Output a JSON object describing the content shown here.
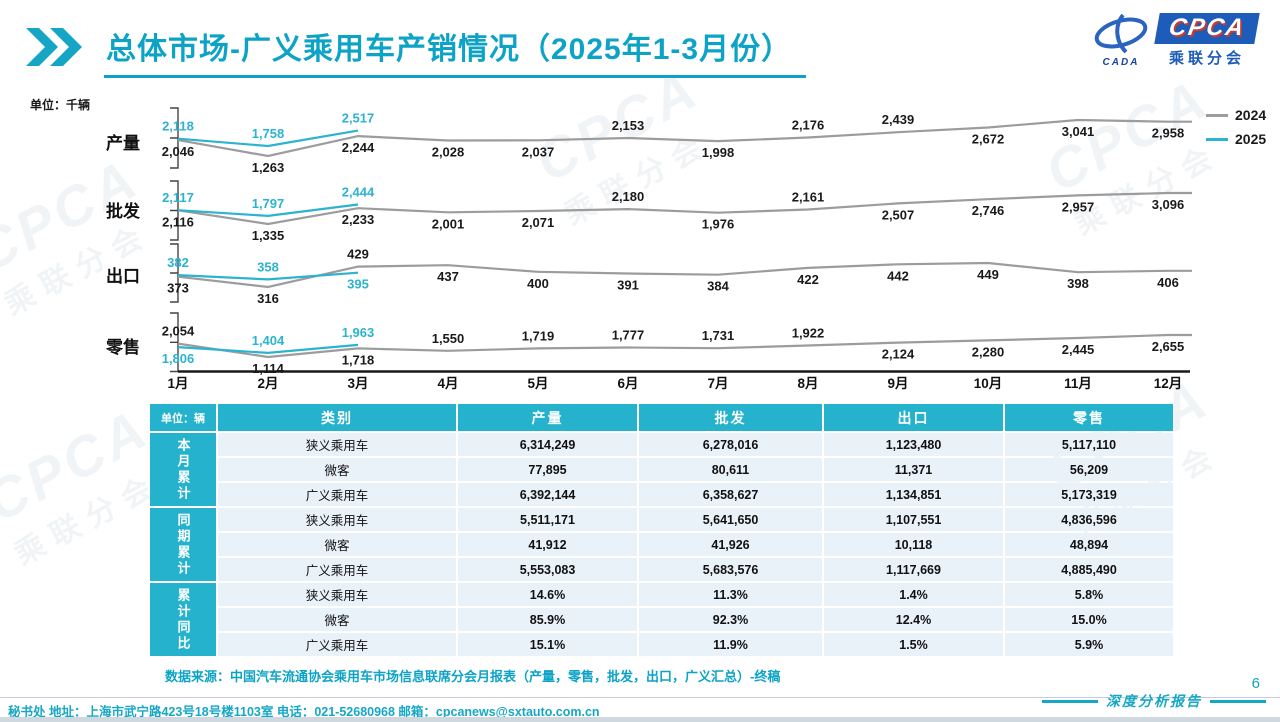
{
  "page": {
    "title": "总体市场-广义乘用车产销情况（2025年1-3月份）",
    "unit_label": "单位：千辆",
    "source": "数据来源：中国汽车流通协会乘用车市场信息联席分会月报表（产量，零售，批发，出口，广义汇总）-终稿",
    "footer_contact": "秘书处  地址：上海市武宁路423号18号楼1103室  电话：021-52680968  邮箱：cpcanews@sxtauto.com.cn",
    "report_label": "深度分析报告",
    "page_number": "6"
  },
  "logo": {
    "cpca": "CPCA",
    "cada": "CADA",
    "cn": "乘联分会"
  },
  "colors": {
    "accent_teal": "#0da3c6",
    "line_2024": "#9c9c9c",
    "line_2025": "#2bb3cf",
    "label_2024": "#1a1a1a",
    "table_header": "#24b2cc",
    "row_bg": "#e9f1f9",
    "logo_blue": "#1d5cb8",
    "logo_red": "#c53b2e"
  },
  "legend": {
    "items": [
      {
        "label": "2024",
        "color": "#9c9c9c"
      },
      {
        "label": "2025",
        "color": "#2bb3cf"
      }
    ]
  },
  "chart_data": {
    "type": "line",
    "unit": "千辆",
    "x": [
      "1月",
      "2月",
      "3月",
      "4月",
      "5月",
      "6月",
      "7月",
      "8月",
      "9月",
      "10月",
      "11月",
      "12月"
    ],
    "legend_position": "top-right",
    "rows": [
      {
        "label": "产量",
        "series": [
          {
            "name": "2024",
            "color": "#9c9c9c",
            "label_color": "#1a1a1a",
            "values": [
              2046,
              1263,
              2244,
              2028,
              2037,
              2153,
              1998,
              2176,
              2439,
              2672,
              3041,
              2958
            ],
            "label_pos": [
              "b",
              "b",
              "b",
              "b",
              "b",
              "a",
              "b",
              "a",
              "a",
              "b",
              "b",
              "b"
            ]
          },
          {
            "name": "2025",
            "color": "#2bb3cf",
            "label_color": "#2bb3cf",
            "values": [
              2118,
              1758,
              2517
            ],
            "label_pos": [
              "a",
              "a",
              "a"
            ]
          }
        ]
      },
      {
        "label": "批发",
        "series": [
          {
            "name": "2024",
            "color": "#9c9c9c",
            "label_color": "#1a1a1a",
            "values": [
              2116,
              1335,
              2233,
              2001,
              2071,
              2180,
              1976,
              2161,
              2507,
              2746,
              2957,
              3096
            ],
            "label_pos": [
              "b",
              "b",
              "b",
              "b",
              "b",
              "a",
              "b",
              "a",
              "b",
              "b",
              "b",
              "b"
            ]
          },
          {
            "name": "2025",
            "color": "#2bb3cf",
            "label_color": "#2bb3cf",
            "values": [
              2117,
              1797,
              2444
            ],
            "label_pos": [
              "a",
              "a",
              "a"
            ]
          }
        ]
      },
      {
        "label": "出口",
        "series": [
          {
            "name": "2024",
            "color": "#9c9c9c",
            "label_color": "#1a1a1a",
            "values": [
              373,
              316,
              429,
              437,
              400,
              391,
              384,
              422,
              442,
              449,
              398,
              406
            ],
            "label_pos": [
              "b",
              "b",
              "a",
              "b",
              "b",
              "b",
              "b",
              "b",
              "b",
              "b",
              "b",
              "b"
            ]
          },
          {
            "name": "2025",
            "color": "#2bb3cf",
            "label_color": "#2bb3cf",
            "values": [
              382,
              358,
              395
            ],
            "label_pos": [
              "a",
              "a",
              "b"
            ]
          }
        ]
      },
      {
        "label": "零售",
        "series": [
          {
            "name": "2024",
            "color": "#9c9c9c",
            "label_color": "#1a1a1a",
            "values": [
              2054,
              1114,
              1718,
              1550,
              1719,
              1777,
              1731,
              1922,
              2124,
              2280,
              2445,
              2655
            ],
            "label_pos": [
              "a",
              "b",
              "b",
              "a",
              "a",
              "a",
              "a",
              "a",
              "b",
              "b",
              "b",
              "b"
            ]
          },
          {
            "name": "2025",
            "color": "#2bb3cf",
            "label_color": "#2bb3cf",
            "values": [
              1806,
              1404,
              1963
            ],
            "label_pos": [
              "b",
              "a",
              "a"
            ]
          }
        ]
      }
    ]
  },
  "table": {
    "unit_header": "单位：辆",
    "columns": [
      "类别",
      "产量",
      "批发",
      "出口",
      "零售"
    ],
    "groups": [
      {
        "label": "本月累计",
        "rows": [
          [
            "狭义乘用车",
            "6,314,249",
            "6,278,016",
            "1,123,480",
            "5,117,110"
          ],
          [
            "微客",
            "77,895",
            "80,611",
            "11,371",
            "56,209"
          ],
          [
            "广义乘用车",
            "6,392,144",
            "6,358,627",
            "1,134,851",
            "5,173,319"
          ]
        ]
      },
      {
        "label": "同期累计",
        "rows": [
          [
            "狭义乘用车",
            "5,511,171",
            "5,641,650",
            "1,107,551",
            "4,836,596"
          ],
          [
            "微客",
            "41,912",
            "41,926",
            "10,118",
            "48,894"
          ],
          [
            "广义乘用车",
            "5,553,083",
            "5,683,576",
            "1,117,669",
            "4,885,490"
          ]
        ]
      },
      {
        "label": "累计同比",
        "rows": [
          [
            "狭义乘用车",
            "14.6%",
            "11.3%",
            "1.4%",
            "5.8%"
          ],
          [
            "微客",
            "85.9%",
            "92.3%",
            "12.4%",
            "15.0%"
          ],
          [
            "广义乘用车",
            "15.1%",
            "11.9%",
            "1.5%",
            "5.9%"
          ]
        ]
      }
    ]
  }
}
